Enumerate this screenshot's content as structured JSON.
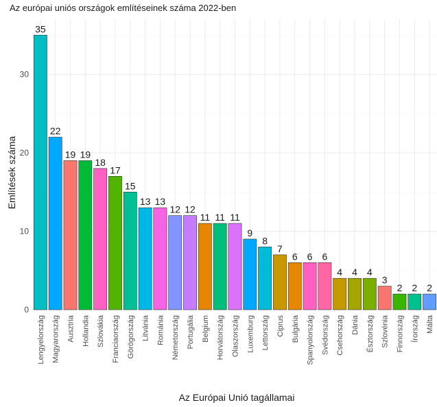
{
  "chart_data": {
    "type": "bar",
    "title": "Az európai uniós országok említéseinek száma 2022-ben",
    "xlabel": "Az Európai Unió tagállamai",
    "ylabel": "Említések száma",
    "ylim": [
      0,
      35
    ],
    "yticks": [
      0,
      10,
      20,
      30
    ],
    "grid": true,
    "legend": "none",
    "categories": [
      "Lengyelország",
      "Magyarország",
      "Ausztria",
      "Hollandia",
      "Szlovákia",
      "Franciaország",
      "Görögország",
      "Litvánia",
      "Románia",
      "Németország",
      "Portugália",
      "Belgium",
      "Horvátország",
      "Olaszország",
      "Luxemburg",
      "Lettország",
      "Ciprus",
      "Bulgária",
      "Spanyolország",
      "Svédország",
      "Csehország",
      "Dánia",
      "Észtország",
      "Szlovénia",
      "Finnország",
      "Írország",
      "Málta"
    ],
    "values": [
      35,
      22,
      19,
      19,
      18,
      17,
      15,
      13,
      13,
      12,
      12,
      11,
      11,
      11,
      9,
      8,
      7,
      6,
      6,
      6,
      4,
      4,
      4,
      3,
      2,
      2,
      2
    ],
    "colors": [
      "#00BFC4",
      "#00A9FF",
      "#F8766D",
      "#00BA38",
      "#FF61C3",
      "#53B400",
      "#00C094",
      "#00B8E7",
      "#F564E3",
      "#8494FF",
      "#C77CFF",
      "#E58700",
      "#00BF7D",
      "#DB72FB",
      "#00A9FF",
      "#00BCD8",
      "#C99800",
      "#E58700",
      "#FF61C3",
      "#FF67A4",
      "#C49A00",
      "#A3A500",
      "#7CAE00",
      "#F8766D",
      "#39B600",
      "#00C08B",
      "#619CFF"
    ]
  }
}
